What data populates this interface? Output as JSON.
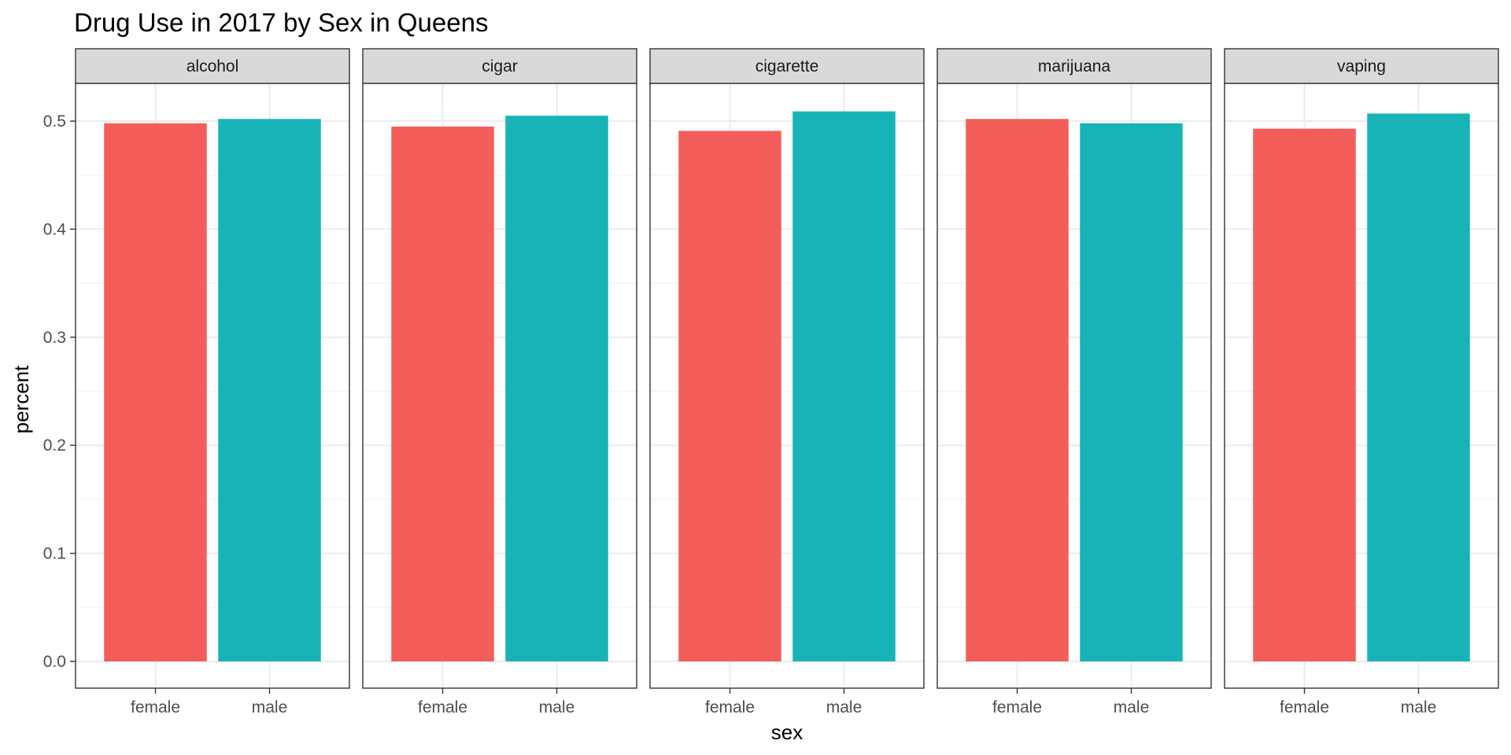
{
  "chart_data": {
    "type": "bar",
    "title": "Drug Use in 2017 by Sex in Queens",
    "xlabel": "sex",
    "ylabel": "percent",
    "ylim": [
      0,
      0.5
    ],
    "y_ticks": [
      "0.0",
      "0.1",
      "0.2",
      "0.3",
      "0.4",
      "0.5"
    ],
    "categories": [
      "female",
      "male"
    ],
    "grid": true,
    "legend": "none",
    "colors": {
      "female": "#F35E5A",
      "male": "#18B3B7"
    },
    "panels": [
      {
        "facet": "alcohol",
        "values": [
          0.498,
          0.502
        ]
      },
      {
        "facet": "cigar",
        "values": [
          0.495,
          0.505
        ]
      },
      {
        "facet": "cigarette",
        "values": [
          0.491,
          0.509
        ]
      },
      {
        "facet": "marijuana",
        "values": [
          0.502,
          0.498
        ]
      },
      {
        "facet": "vaping",
        "values": [
          0.493,
          0.507
        ]
      }
    ]
  }
}
